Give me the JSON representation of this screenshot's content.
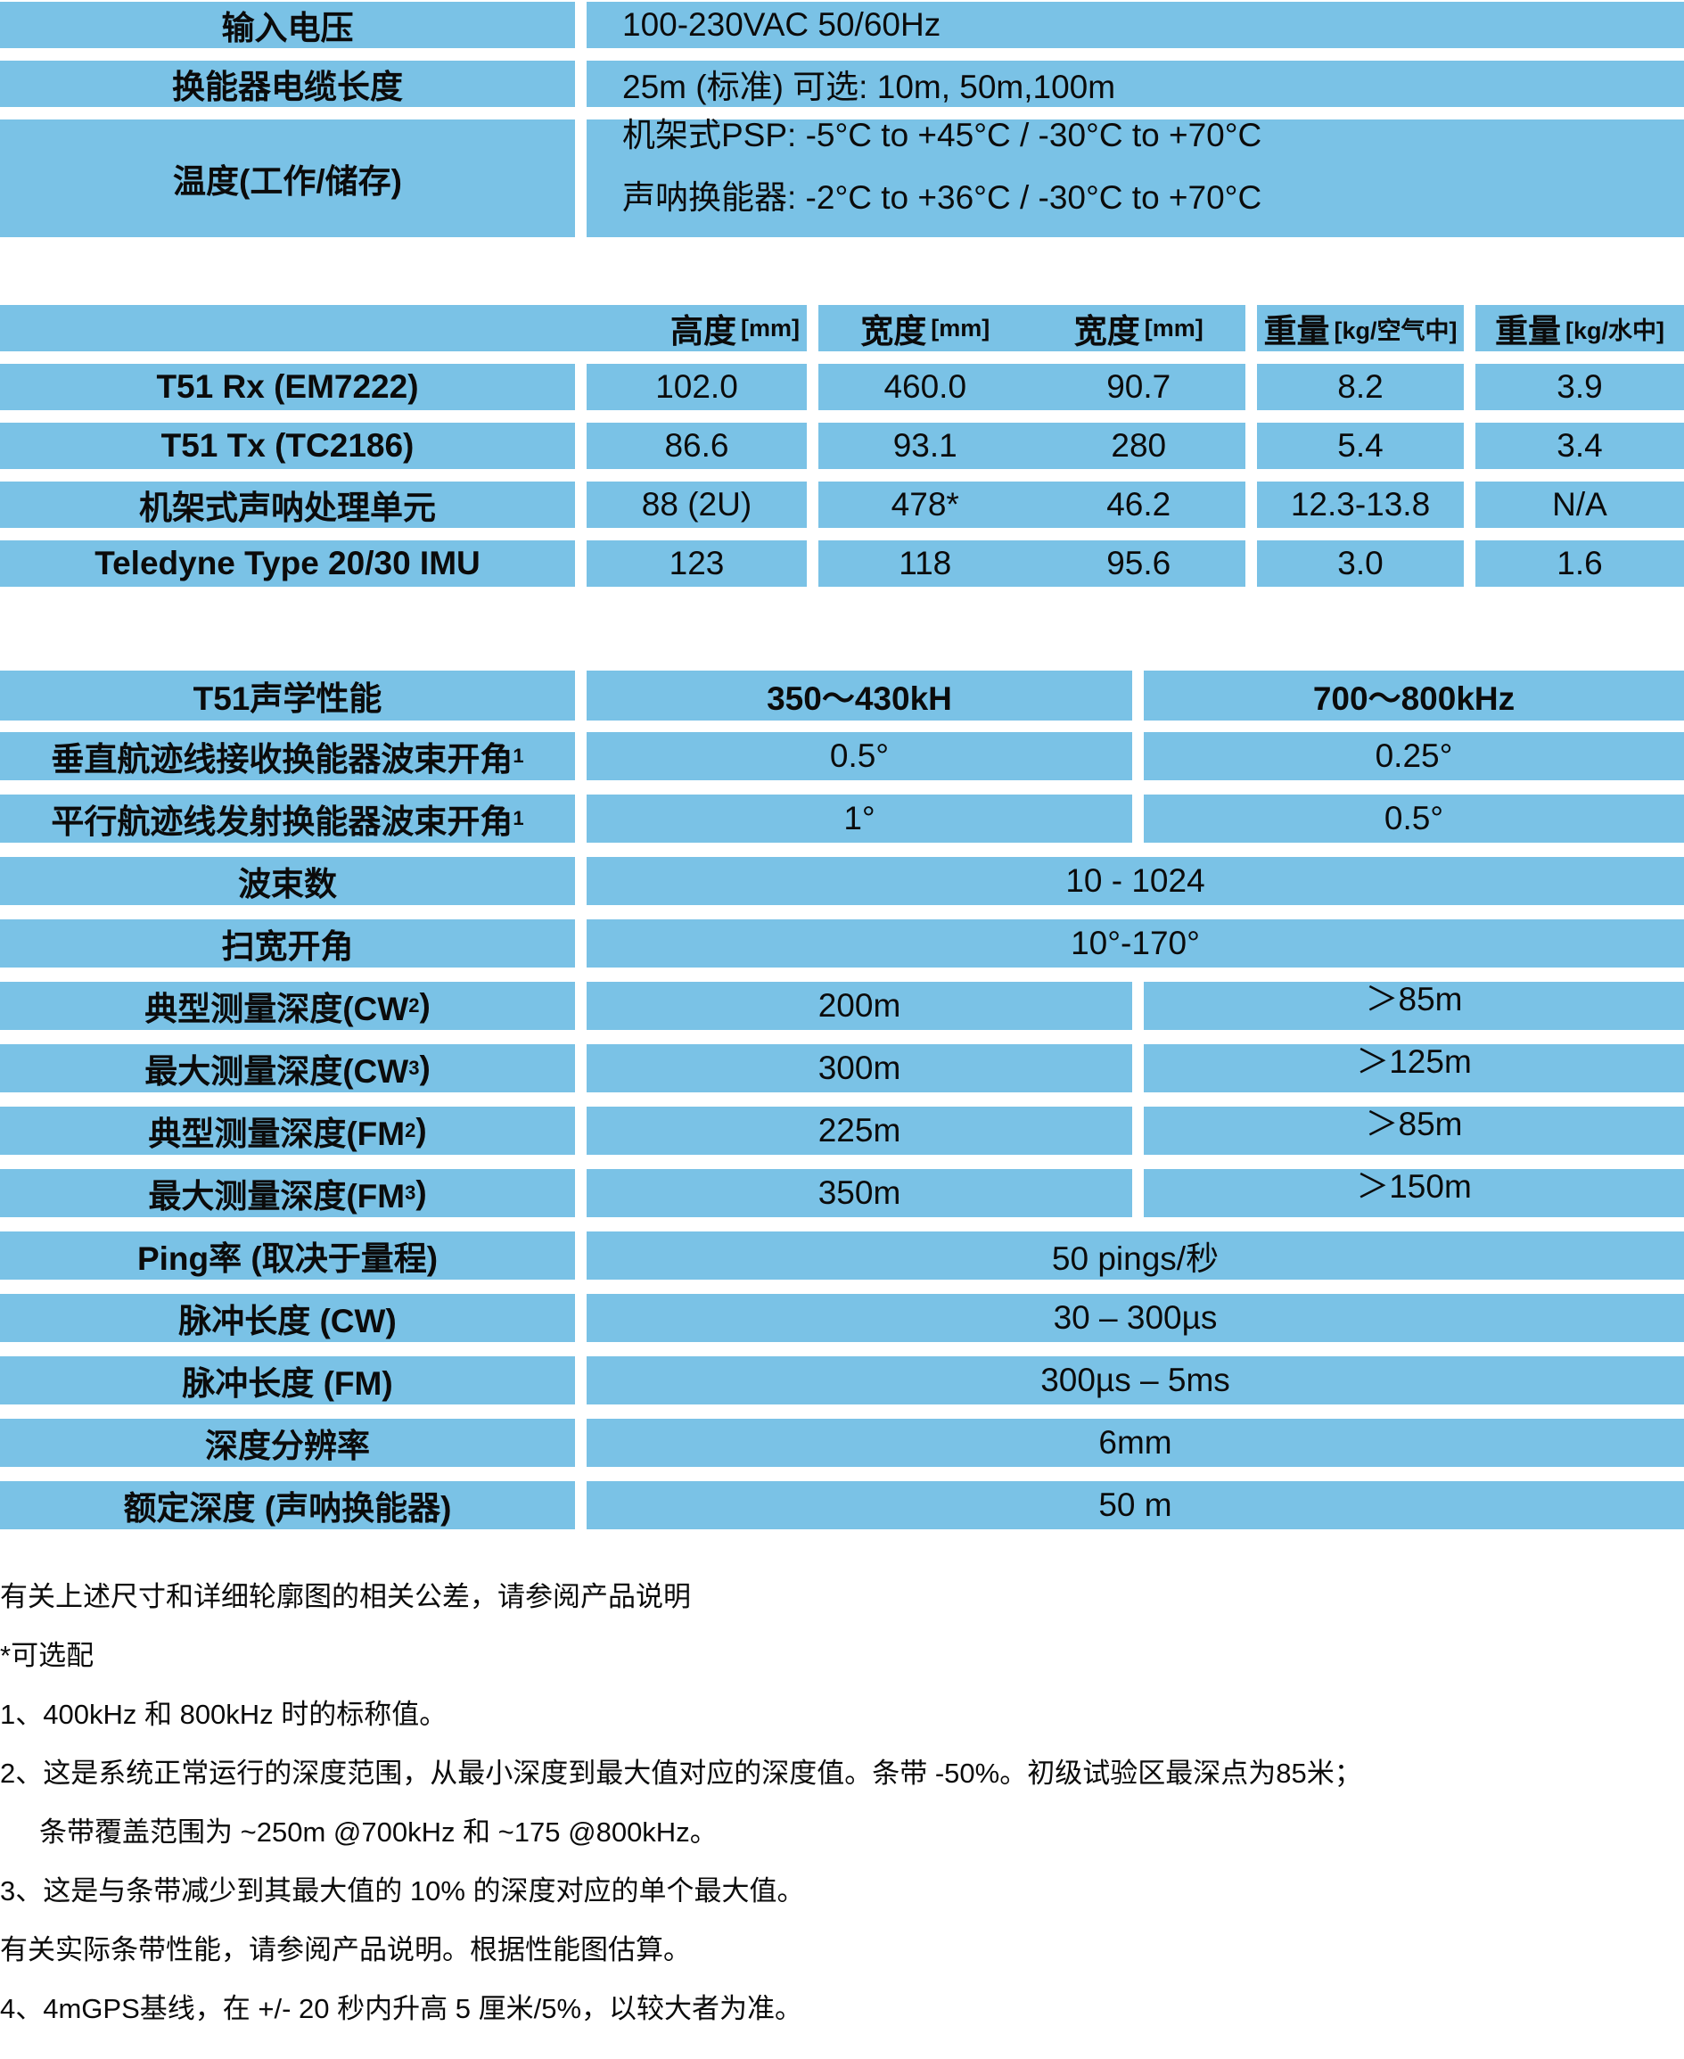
{
  "colors": {
    "table_blue": "#7AC2E6",
    "text": "#0B0B0B",
    "background": "#FFFFFF"
  },
  "power_table": {
    "rows": [
      {
        "label": "输入电压",
        "value": "100-230VAC 50/60Hz"
      },
      {
        "label": "换能器电缆长度",
        "value": "25m (标准) 可选: 10m, 50m,100m"
      },
      {
        "label": "温度(工作/储存)",
        "value_line1": "机架式PSP: -5°C to +45°C / -30°C to +70°C",
        "value_line2": "声呐换能器: -2°C to +36°C / -30°C to +70°C"
      }
    ]
  },
  "dimensions_table": {
    "header": {
      "height_label": "高度",
      "height_unit": "[mm]",
      "width1_label": "宽度",
      "width1_unit": "[mm]",
      "width2_label": "宽度",
      "width2_unit": "[mm]",
      "weight_air_label": "重量",
      "weight_air_unit": "[kg/空气中]",
      "weight_water_label": "重量",
      "weight_water_unit": "[kg/水中]"
    },
    "rows": [
      {
        "label": "T51 Rx (EM7222)",
        "height": "102.0",
        "width1": "460.0",
        "width2": "90.7",
        "weight_air": "8.2",
        "weight_water": "3.9"
      },
      {
        "label": "T51 Tx (TC2186)",
        "height": "86.6",
        "width1": "93.1",
        "width2": "280",
        "weight_air": "5.4",
        "weight_water": "3.4"
      },
      {
        "label": "机架式声呐处理单元",
        "height": "88 (2U)",
        "width1": "478*",
        "width2": "46.2",
        "weight_air": "12.3-13.8",
        "weight_water": "N/A"
      },
      {
        "label": "Teledyne Type 20/30 IMU",
        "height": "123",
        "width1": "118",
        "width2": "95.6",
        "weight_air": "3.0",
        "weight_water": "1.6"
      }
    ]
  },
  "acoustic_table": {
    "header": {
      "label": "T51声学性能",
      "band1": "350～430kH",
      "band2": "700～800kHz"
    },
    "rows": [
      {
        "label": "垂直航迹线接收换能器波束开角",
        "sup": "1",
        "suffix": "",
        "v1": "0.5°",
        "v2": "0.25°"
      },
      {
        "label": "平行航迹线发射换能器波束开角",
        "sup": "1",
        "suffix": "",
        "v1": "1°",
        "v2": "0.5°"
      },
      {
        "label": "波束数",
        "sup": "",
        "suffix": "",
        "value": "10 - 1024"
      },
      {
        "label": "扫宽开角",
        "sup": "",
        "suffix": "",
        "value": "10°-170°"
      },
      {
        "label": "典型测量深度(CW",
        "sup": "2",
        "suffix": ")",
        "v1": "200m",
        "v2": "＞85m"
      },
      {
        "label": "最大测量深度(CW",
        "sup": "3",
        "suffix": ")",
        "v1": "300m",
        "v2": "＞125m"
      },
      {
        "label": "典型测量深度(FM",
        "sup": "2",
        "suffix": ")",
        "v1": "225m",
        "v2": "＞85m"
      },
      {
        "label": "最大测量深度(FM",
        "sup": "3",
        "suffix": ")",
        "v1": "350m",
        "v2": "＞150m"
      },
      {
        "label": "Ping率 (取决于量程)",
        "sup": "",
        "suffix": "",
        "value": "50 pings/秒"
      },
      {
        "label": "脉冲长度 (CW)",
        "sup": "",
        "suffix": "",
        "value": "30 – 300µs"
      },
      {
        "label": "脉冲长度 (FM)",
        "sup": "",
        "suffix": "",
        "value": "300µs – 5ms"
      },
      {
        "label": "深度分辨率",
        "sup": "",
        "suffix": "",
        "value": "6mm"
      },
      {
        "label": "额定深度 (声呐换能器)",
        "sup": "",
        "suffix": "",
        "value": "50 m"
      }
    ]
  },
  "footnotes": {
    "lines": [
      "有关上述尺寸和详细轮廓图的相关公差，请参阅产品说明",
      "*可选配",
      "1、400kHz 和 800kHz 时的标称值。",
      "2、这是系统正常运行的深度范围，从最小深度到最大值对应的深度值。条带 -50%。初级试验区最深点为85米；",
      "条带覆盖范围为 ~250m @700kHz 和 ~175 @800kHz。",
      "3、这是与条带减少到其最大值的 10% 的深度对应的单个最大值。",
      "有关实际条带性能，请参阅产品说明。根据性能图估算。",
      "4、4mGPS基线，在 +/- 20 秒内升高 5 厘米/5%，以较大者为准。"
    ]
  }
}
